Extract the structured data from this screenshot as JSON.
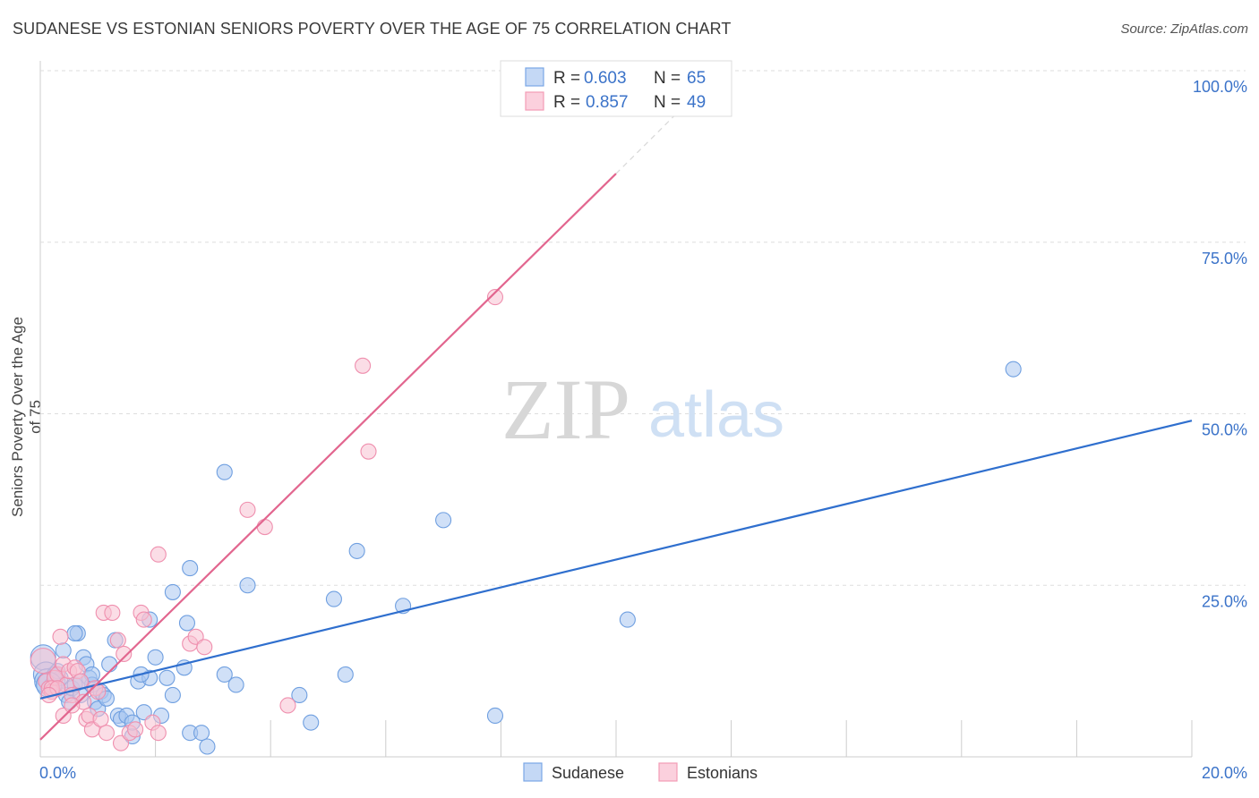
{
  "header": {
    "title": "SUDANESE VS ESTONIAN SENIORS POVERTY OVER THE AGE OF 75 CORRELATION CHART",
    "source": "Source: ZipAtlas.com"
  },
  "watermark": {
    "zip": "ZIP",
    "atlas": "atlas"
  },
  "legend_top": {
    "rows": [
      {
        "r_label": "R = ",
        "r_value": "0.603",
        "n_label": "N = ",
        "n_value": "65",
        "color": "#7aa6e6"
      },
      {
        "r_label": "R = ",
        "r_value": "0.857",
        "n_label": "N = ",
        "n_value": "49",
        "color": "#f39cb6"
      }
    ]
  },
  "legend_bottom": {
    "items": [
      {
        "label": "Sudanese",
        "color": "#7aa6e6"
      },
      {
        "label": "Estonians",
        "color": "#f39cb6"
      }
    ]
  },
  "chart_data": {
    "type": "scatter",
    "title": "SUDANESE VS ESTONIAN SENIORS POVERTY OVER THE AGE OF 75 CORRELATION CHART",
    "xlabel": "",
    "ylabel": "Seniors Poverty Over the Age of 75",
    "xlim": [
      0,
      20
    ],
    "ylim": [
      0,
      100
    ],
    "x_ticks": [
      "0.0%",
      "20.0%"
    ],
    "y_ticks": [
      {
        "value": 100,
        "label": "100.0%"
      },
      {
        "value": 75,
        "label": "75.0%"
      },
      {
        "value": 50,
        "label": "50.0%"
      },
      {
        "value": 25,
        "label": "25.0%"
      }
    ],
    "grid": true,
    "legend": "top-center",
    "colors": {
      "blue_fill": "#a9c6f0",
      "blue_stroke": "#6f9fe0",
      "blue_line": "#2f6fce",
      "pink_fill": "#f8c1d2",
      "pink_stroke": "#ef8fae",
      "pink_line": "#e2668f",
      "tick_label": "#3b73c9"
    },
    "series": [
      {
        "name": "Sudanese",
        "r": 0.603,
        "n": 65,
        "trend": {
          "x0": 0,
          "y0": 8.5,
          "x1": 20,
          "y1": 49
        },
        "points": [
          [
            0.05,
            14.5
          ],
          [
            0.1,
            12
          ],
          [
            0.12,
            11
          ],
          [
            0.2,
            10.5
          ],
          [
            0.25,
            12
          ],
          [
            0.3,
            11
          ],
          [
            0.35,
            11.5
          ],
          [
            0.4,
            15.5
          ],
          [
            0.45,
            9
          ],
          [
            0.5,
            8
          ],
          [
            0.55,
            10
          ],
          [
            0.6,
            10.5
          ],
          [
            0.65,
            18
          ],
          [
            0.7,
            9
          ],
          [
            0.75,
            14.5
          ],
          [
            0.8,
            13.5
          ],
          [
            0.85,
            11.5
          ],
          [
            0.9,
            10.5
          ],
          [
            0.95,
            8
          ],
          [
            1.0,
            7
          ],
          [
            1.05,
            9.5
          ],
          [
            1.1,
            9
          ],
          [
            1.15,
            8.5
          ],
          [
            1.2,
            13.5
          ],
          [
            1.3,
            17
          ],
          [
            1.35,
            6
          ],
          [
            1.4,
            5.5
          ],
          [
            1.5,
            6
          ],
          [
            1.6,
            3
          ],
          [
            1.7,
            11
          ],
          [
            1.8,
            6.5
          ],
          [
            1.9,
            11.5
          ],
          [
            2.0,
            14.5
          ],
          [
            2.1,
            6
          ],
          [
            2.2,
            11.5
          ],
          [
            2.3,
            9
          ],
          [
            2.5,
            13
          ],
          [
            2.6,
            3.5
          ],
          [
            2.8,
            3.5
          ],
          [
            2.9,
            1.5
          ],
          [
            3.2,
            12
          ],
          [
            3.4,
            10.5
          ],
          [
            3.6,
            25
          ],
          [
            4.5,
            9
          ],
          [
            4.7,
            5
          ],
          [
            5.1,
            23
          ],
          [
            5.3,
            12
          ],
          [
            5.5,
            30
          ],
          [
            6.3,
            22
          ],
          [
            7.0,
            34.5
          ],
          [
            7.9,
            6
          ],
          [
            10.2,
            20
          ],
          [
            16.9,
            56.5
          ],
          [
            3.2,
            41.5
          ],
          [
            2.6,
            27.5
          ],
          [
            2.3,
            24
          ],
          [
            2.55,
            19.5
          ],
          [
            1.9,
            20
          ],
          [
            1.6,
            5
          ],
          [
            0.6,
            18
          ],
          [
            0.9,
            12
          ],
          [
            0.7,
            11
          ],
          [
            0.3,
            12.5
          ],
          [
            0.15,
            10.5
          ],
          [
            1.75,
            12
          ]
        ]
      },
      {
        "name": "Estonians",
        "r": 0.857,
        "n": 49,
        "trend": {
          "x0": 0,
          "y0": 2.5,
          "x1": 10,
          "y1": 85,
          "dash_to_x": 11.2,
          "dash_to_y": 95
        },
        "points": [
          [
            0.05,
            14
          ],
          [
            0.1,
            11
          ],
          [
            0.15,
            10
          ],
          [
            0.2,
            9.5
          ],
          [
            0.25,
            11.5
          ],
          [
            0.3,
            12
          ],
          [
            0.35,
            17.5
          ],
          [
            0.4,
            13.5
          ],
          [
            0.45,
            10.5
          ],
          [
            0.5,
            12.5
          ],
          [
            0.55,
            9
          ],
          [
            0.6,
            13
          ],
          [
            0.65,
            12.5
          ],
          [
            0.7,
            11
          ],
          [
            0.75,
            8
          ],
          [
            0.8,
            5.5
          ],
          [
            0.85,
            6
          ],
          [
            0.9,
            4
          ],
          [
            0.95,
            10
          ],
          [
            1.0,
            9.5
          ],
          [
            1.05,
            5.5
          ],
          [
            1.1,
            21
          ],
          [
            1.15,
            3.5
          ],
          [
            1.25,
            21
          ],
          [
            1.35,
            17
          ],
          [
            1.4,
            2
          ],
          [
            1.45,
            15
          ],
          [
            1.55,
            3.5
          ],
          [
            1.65,
            4
          ],
          [
            1.75,
            21
          ],
          [
            1.8,
            20
          ],
          [
            1.95,
            5
          ],
          [
            2.05,
            3.5
          ],
          [
            2.05,
            29.5
          ],
          [
            2.6,
            16.5
          ],
          [
            2.7,
            17.5
          ],
          [
            2.85,
            16
          ],
          [
            3.6,
            36
          ],
          [
            3.9,
            33.5
          ],
          [
            4.3,
            7.5
          ],
          [
            5.6,
            57
          ],
          [
            5.7,
            44.5
          ],
          [
            7.9,
            67
          ],
          [
            8.2,
            100
          ],
          [
            0.4,
            6
          ],
          [
            0.55,
            7.5
          ],
          [
            0.2,
            10
          ],
          [
            0.3,
            10
          ],
          [
            0.15,
            9
          ]
        ]
      }
    ]
  }
}
